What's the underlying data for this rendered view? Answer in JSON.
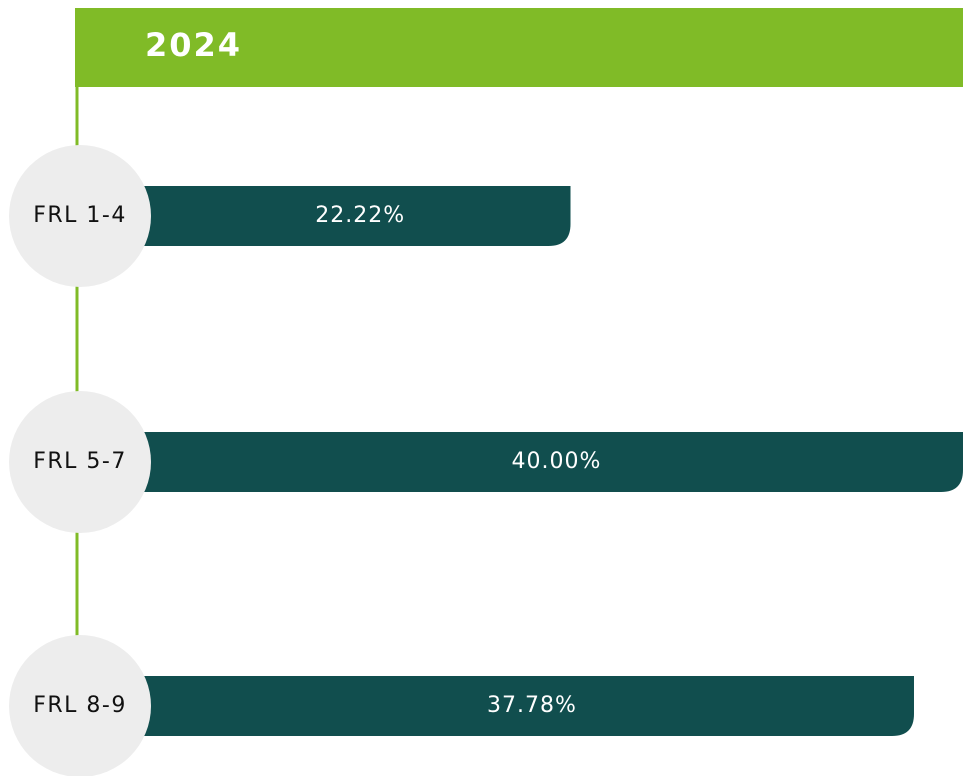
{
  "chart_data": {
    "type": "bar",
    "orientation": "horizontal",
    "title": "2024",
    "categories": [
      "FRL 1-4",
      "FRL 5-7",
      "FRL 8-9"
    ],
    "values": [
      22.22,
      40.0,
      37.78
    ],
    "value_labels": [
      "22.22%",
      "40.00%",
      "37.78%"
    ],
    "color": "#114e4e",
    "header_color": "#80bb27",
    "circle_color": "#ededed"
  }
}
